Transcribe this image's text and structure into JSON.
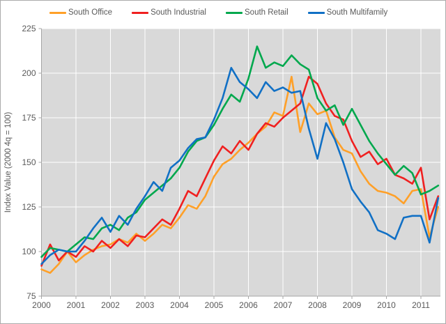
{
  "chart_data": {
    "type": "line",
    "title": "",
    "ylabel": "Index Value (2000 4q = 100)",
    "xlabel": "",
    "ylim": [
      75,
      225
    ],
    "y_ticks": [
      75,
      100,
      125,
      150,
      175,
      200,
      225
    ],
    "x_tick_labels": [
      "2000",
      "2001",
      "2002",
      "2003",
      "2004",
      "2005",
      "2006",
      "2007",
      "2008",
      "2009",
      "2010",
      "2011"
    ],
    "grid": true,
    "legend_position": "top",
    "plot_bg_color": "#d9d9d9",
    "gridline_color": "#ffffff",
    "axis_color": "#a6a6a6",
    "label_color": "#595959",
    "categories": [
      "2000Q1",
      "2000Q2",
      "2000Q3",
      "2000Q4",
      "2001Q1",
      "2001Q2",
      "2001Q3",
      "2001Q4",
      "2002Q1",
      "2002Q2",
      "2002Q3",
      "2002Q4",
      "2003Q1",
      "2003Q2",
      "2003Q3",
      "2003Q4",
      "2004Q1",
      "2004Q2",
      "2004Q3",
      "2004Q4",
      "2005Q1",
      "2005Q2",
      "2005Q3",
      "2005Q4",
      "2006Q1",
      "2006Q2",
      "2006Q3",
      "2006Q4",
      "2007Q1",
      "2007Q2",
      "2007Q3",
      "2007Q4",
      "2008Q1",
      "2008Q2",
      "2008Q3",
      "2008Q4",
      "2009Q1",
      "2009Q2",
      "2009Q3",
      "2009Q4",
      "2010Q1",
      "2010Q2",
      "2010Q3",
      "2010Q4",
      "2011Q1",
      "2011Q2",
      "2011Q3"
    ],
    "series": [
      {
        "name": "South Office",
        "color": "#ffa028",
        "values": [
          90,
          88,
          93,
          100,
          94,
          98,
          101,
          103,
          104,
          107,
          105,
          110,
          106,
          110,
          115,
          113,
          119,
          126,
          124,
          131,
          142,
          149,
          152,
          157,
          161,
          166,
          170,
          178,
          176,
          198,
          167,
          183,
          177,
          179,
          164,
          157,
          155,
          145,
          138,
          134,
          133,
          131,
          127,
          134,
          135,
          108,
          125
        ]
      },
      {
        "name": "South Industrial",
        "color": "#f02020",
        "values": [
          92,
          104,
          95,
          100,
          97,
          103,
          100,
          106,
          102,
          107,
          103,
          109,
          108,
          113,
          118,
          115,
          124,
          134,
          131,
          141,
          151,
          159,
          155,
          162,
          157,
          166,
          172,
          170,
          175,
          179,
          183,
          198,
          194,
          183,
          176,
          174,
          162,
          153,
          156,
          149,
          152,
          143,
          141,
          138,
          147,
          118,
          131
        ]
      },
      {
        "name": "South Retail",
        "color": "#00a84d",
        "values": [
          97,
          102,
          101,
          100,
          104,
          108,
          107,
          113,
          115,
          112,
          119,
          122,
          129,
          133,
          137,
          141,
          147,
          156,
          162,
          164,
          171,
          180,
          188,
          184,
          197,
          215,
          203,
          206,
          204,
          210,
          205,
          202,
          186,
          179,
          182,
          171,
          180,
          171,
          162,
          155,
          149,
          143,
          148,
          144,
          132,
          134,
          137
        ]
      },
      {
        "name": "South Multifamily",
        "color": "#1170c5",
        "values": [
          93,
          98,
          101,
          100,
          100,
          106,
          113,
          119,
          111,
          120,
          115,
          124,
          131,
          139,
          134,
          147,
          151,
          158,
          163,
          164,
          174,
          186,
          203,
          195,
          191,
          186,
          195,
          190,
          192,
          189,
          190,
          169,
          152,
          172,
          163,
          150,
          135,
          128,
          122,
          112,
          110,
          107,
          119,
          120,
          120,
          105,
          130
        ]
      }
    ]
  }
}
